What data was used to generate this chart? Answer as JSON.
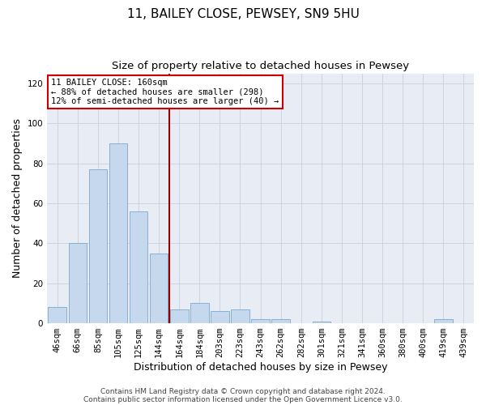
{
  "title1": "11, BAILEY CLOSE, PEWSEY, SN9 5HU",
  "title2": "Size of property relative to detached houses in Pewsey",
  "xlabel": "Distribution of detached houses by size in Pewsey",
  "ylabel": "Number of detached properties",
  "categories": [
    "46sqm",
    "66sqm",
    "85sqm",
    "105sqm",
    "125sqm",
    "144sqm",
    "164sqm",
    "184sqm",
    "203sqm",
    "223sqm",
    "243sqm",
    "262sqm",
    "282sqm",
    "301sqm",
    "321sqm",
    "341sqm",
    "360sqm",
    "380sqm",
    "400sqm",
    "419sqm",
    "439sqm"
  ],
  "values": [
    8,
    40,
    77,
    90,
    56,
    35,
    7,
    10,
    6,
    7,
    2,
    2,
    0,
    1,
    0,
    0,
    0,
    0,
    0,
    2,
    0
  ],
  "bar_color": "#c5d8ed",
  "bar_edge_color": "#7aa8cc",
  "vline_color": "#990000",
  "annotation_text": "11 BAILEY CLOSE: 160sqm\n← 88% of detached houses are smaller (298)\n12% of semi-detached houses are larger (40) →",
  "annotation_box_color": "#ffffff",
  "annotation_box_edge": "#cc0000",
  "ylim": [
    0,
    125
  ],
  "yticks": [
    0,
    20,
    40,
    60,
    80,
    100,
    120
  ],
  "grid_color": "#c8d0dc",
  "background_color": "#e8edf5",
  "footer1": "Contains HM Land Registry data © Crown copyright and database right 2024.",
  "footer2": "Contains public sector information licensed under the Open Government Licence v3.0.",
  "title1_fontsize": 11,
  "title2_fontsize": 9.5,
  "tick_fontsize": 7.5,
  "ylabel_fontsize": 9,
  "xlabel_fontsize": 9,
  "footer_fontsize": 6.5,
  "annot_fontsize": 7.5
}
